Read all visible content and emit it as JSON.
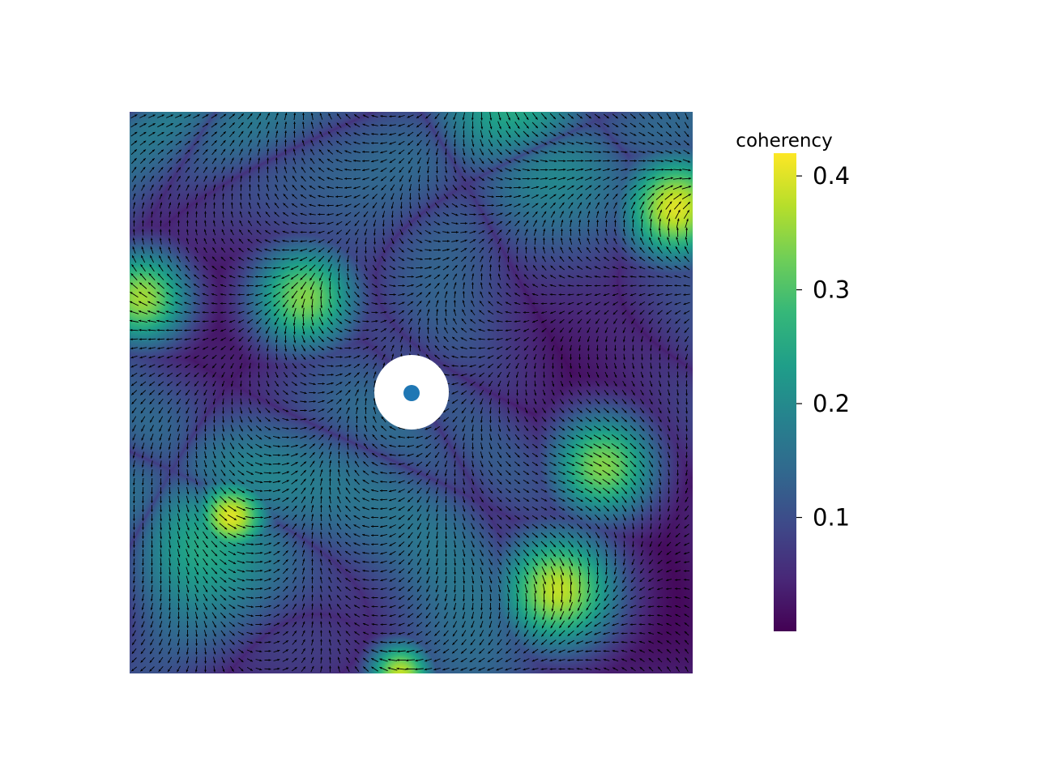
{
  "chart_data": {
    "type": "heatmap",
    "subtype": "orientation-field (quiver) over coherency map",
    "colormap": "viridis",
    "axes_visible": false,
    "colorbar": {
      "title": "coherency",
      "range": [
        0.0,
        0.42
      ],
      "ticks": [
        0.1,
        0.2,
        0.3,
        0.4
      ],
      "tick_labels": [
        "0.1",
        "0.2",
        "0.3",
        "0.4"
      ],
      "position": "right"
    },
    "center_marker": {
      "description": "blue dot with white masked disc around it",
      "color": "#1f77b4",
      "mask_color": "#ffffff"
    },
    "arrows": {
      "color": "#000000",
      "grid": "dense regular grid"
    },
    "high_coherency_regions": [
      {
        "location": "top-right edge",
        "value": 0.4
      },
      {
        "location": "left-center",
        "value": 0.36
      },
      {
        "location": "upper-middle-left",
        "value": 0.34
      },
      {
        "location": "lower-left",
        "value": 0.4
      },
      {
        "location": "lower-right-center",
        "value": 0.38
      },
      {
        "location": "right-middle",
        "value": 0.34
      },
      {
        "location": "bottom-center edge",
        "value": 0.38
      }
    ]
  }
}
